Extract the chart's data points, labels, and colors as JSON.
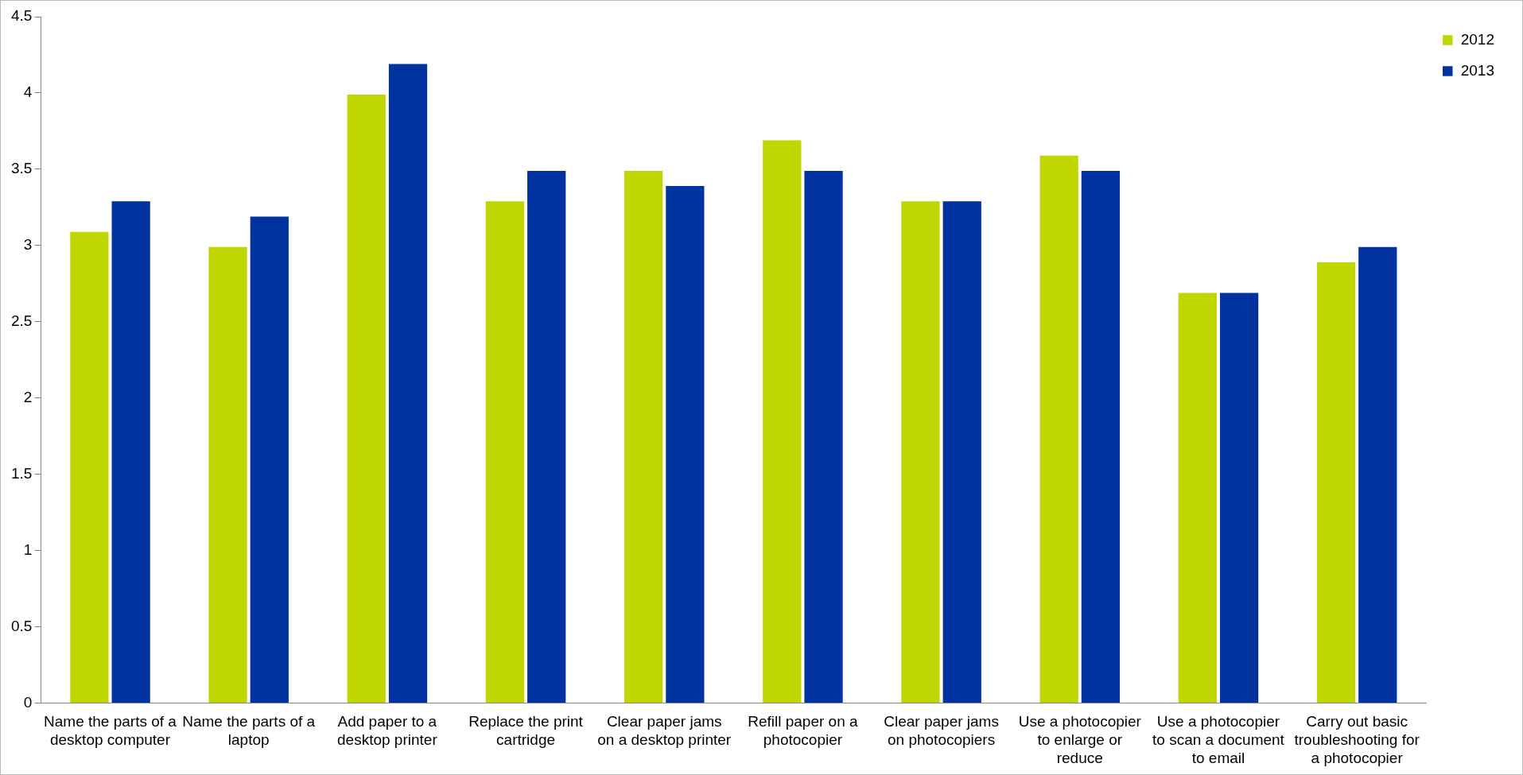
{
  "chart_data": {
    "type": "bar",
    "categories": [
      "Name the parts of a desktop computer",
      "Name the parts of a laptop",
      "Add paper to a desktop printer",
      "Replace the print cartridge",
      "Clear paper jams on a desktop printer",
      "Refill paper on a photocopier",
      "Clear paper jams on photocopiers",
      "Use a photocopier to enlarge or reduce",
      "Use a photocopier to scan a document to email",
      "Carry out basic troubleshooting for a photocopier"
    ],
    "series": [
      {
        "name": "2012",
        "color": "#bfd600",
        "values": [
          3.1,
          3.0,
          4.0,
          3.3,
          3.5,
          3.7,
          3.3,
          3.6,
          2.7,
          2.9
        ]
      },
      {
        "name": "2013",
        "color": "#0033a0",
        "values": [
          3.3,
          3.2,
          4.2,
          3.5,
          3.4,
          3.5,
          3.3,
          3.5,
          2.7,
          3.0
        ]
      }
    ],
    "ylim": [
      0,
      4.5
    ],
    "yticks": [
      0,
      0.5,
      1,
      1.5,
      2,
      2.5,
      3,
      3.5,
      4,
      4.5
    ],
    "grid": false,
    "legend": "top right"
  }
}
